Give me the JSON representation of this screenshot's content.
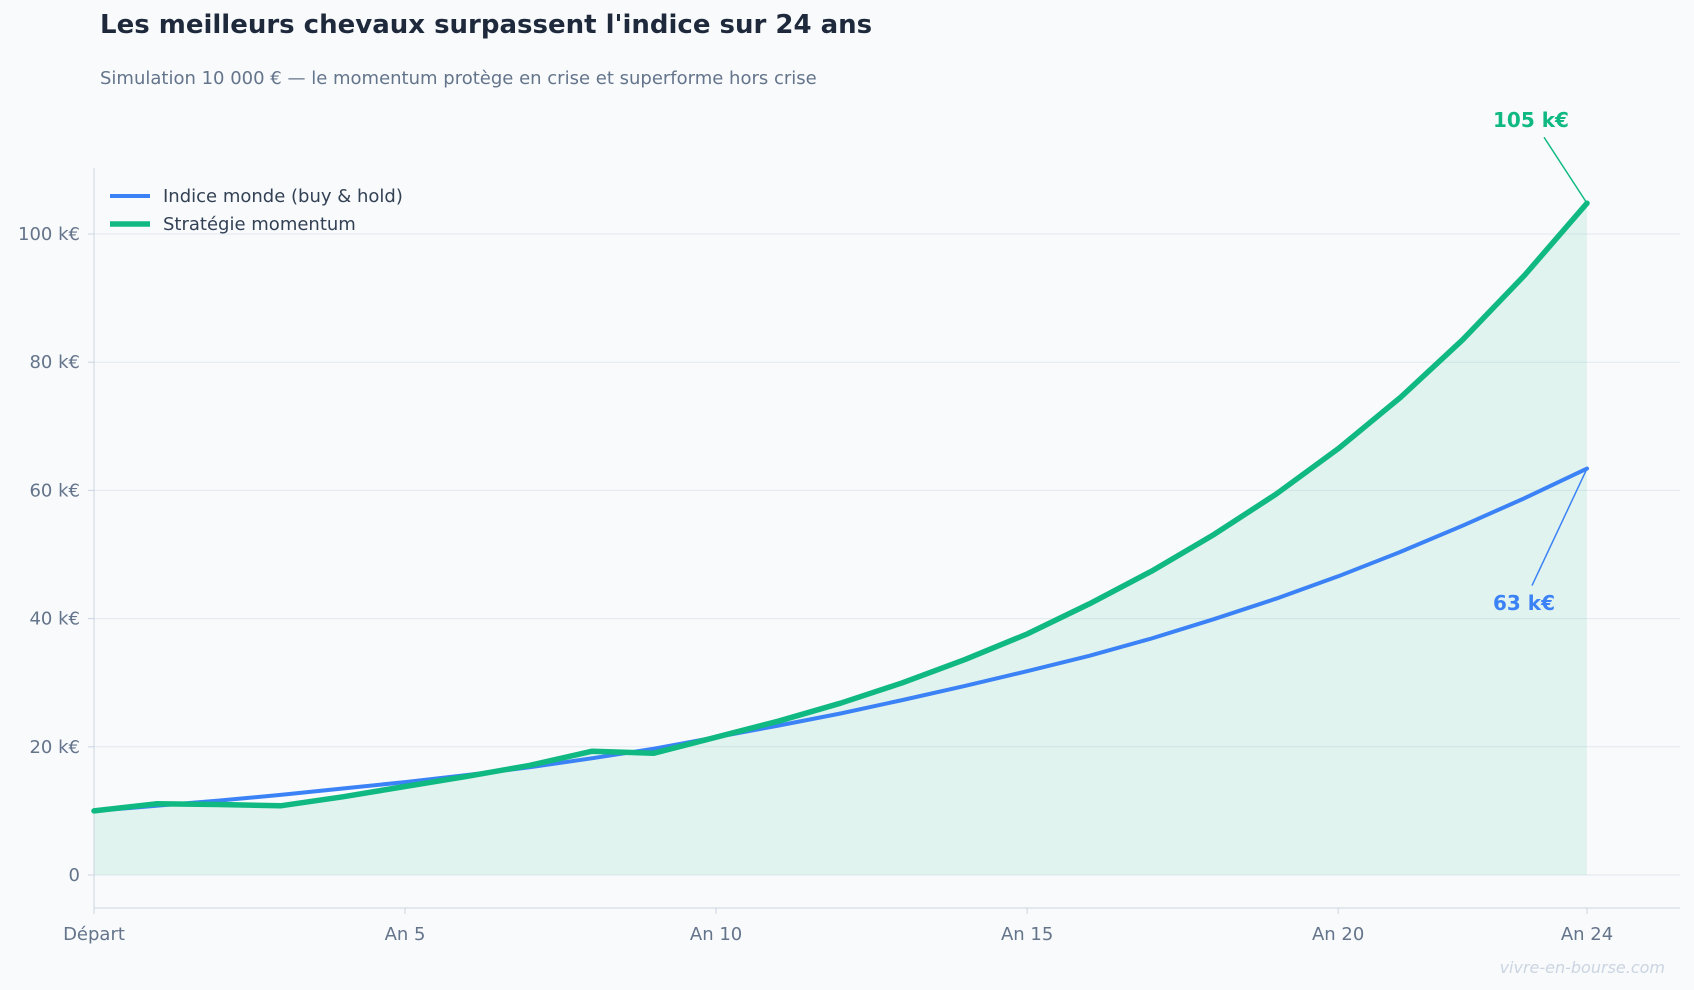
{
  "title": "Les meilleurs chevaux surpassent l'indice sur 24 ans",
  "subtitle": "Simulation 10 000 € — le momentum protège en crise et superforme hors crise",
  "watermark": "vivre-en-bourse.com",
  "colors": {
    "background": "#f8fafc",
    "index": "#3b82f6",
    "momentum": "#10b981",
    "fill": "#10b981",
    "grid": "#e2e8f0",
    "axis": "#cbd5e1",
    "text": "#64748b"
  },
  "chart_data": {
    "type": "line",
    "title": "Les meilleurs chevaux surpassent l'indice sur 24 ans",
    "subtitle": "Simulation 10 000 € — le momentum protège en crise et superforme hors crise",
    "x": [
      0,
      1,
      2,
      3,
      4,
      5,
      6,
      7,
      8,
      9,
      10,
      11,
      12,
      13,
      14,
      15,
      16,
      17,
      18,
      19,
      20,
      21,
      22,
      23,
      24
    ],
    "x_ticks": [
      {
        "value": 0,
        "label": "Départ"
      },
      {
        "value": 5,
        "label": "An 5"
      },
      {
        "value": 10,
        "label": "An 10"
      },
      {
        "value": 15,
        "label": "An 15"
      },
      {
        "value": 20,
        "label": "An 20"
      },
      {
        "value": 24,
        "label": "An 24"
      }
    ],
    "y_ticks": [
      {
        "value": 0,
        "label": "0"
      },
      {
        "value": 20,
        "label": "20 k€"
      },
      {
        "value": 40,
        "label": "40 k€"
      },
      {
        "value": 60,
        "label": "60 k€"
      },
      {
        "value": 80,
        "label": "80 k€"
      },
      {
        "value": 100,
        "label": "100 k€"
      }
    ],
    "xlim": [
      0,
      25.5
    ],
    "ylim": [
      -5,
      110
    ],
    "grid": "horizontal",
    "legend_position": "top-left",
    "series": [
      {
        "name": "Indice monde (buy & hold)",
        "color": "#3b82f6",
        "values": [
          10.0,
          10.8,
          11.6,
          12.5,
          13.5,
          14.5,
          15.6,
          16.8,
          18.2,
          19.7,
          21.5,
          23.3,
          25.2,
          27.3,
          29.5,
          31.8,
          34.2,
          36.9,
          39.9,
          43.1,
          46.6,
          50.4,
          54.5,
          58.8,
          63.4
        ],
        "annotation": "63 k€"
      },
      {
        "name": "Stratégie momentum",
        "color": "#10b981",
        "values": [
          10.0,
          11.1,
          11.0,
          10.8,
          12.2,
          13.8,
          15.4,
          17.1,
          19.3,
          19.0,
          21.5,
          24.0,
          26.8,
          30.0,
          33.6,
          37.6,
          42.3,
          47.4,
          53.1,
          59.4,
          66.5,
          74.5,
          83.5,
          93.6,
          104.8
        ],
        "annotation": "105 k€"
      }
    ]
  }
}
